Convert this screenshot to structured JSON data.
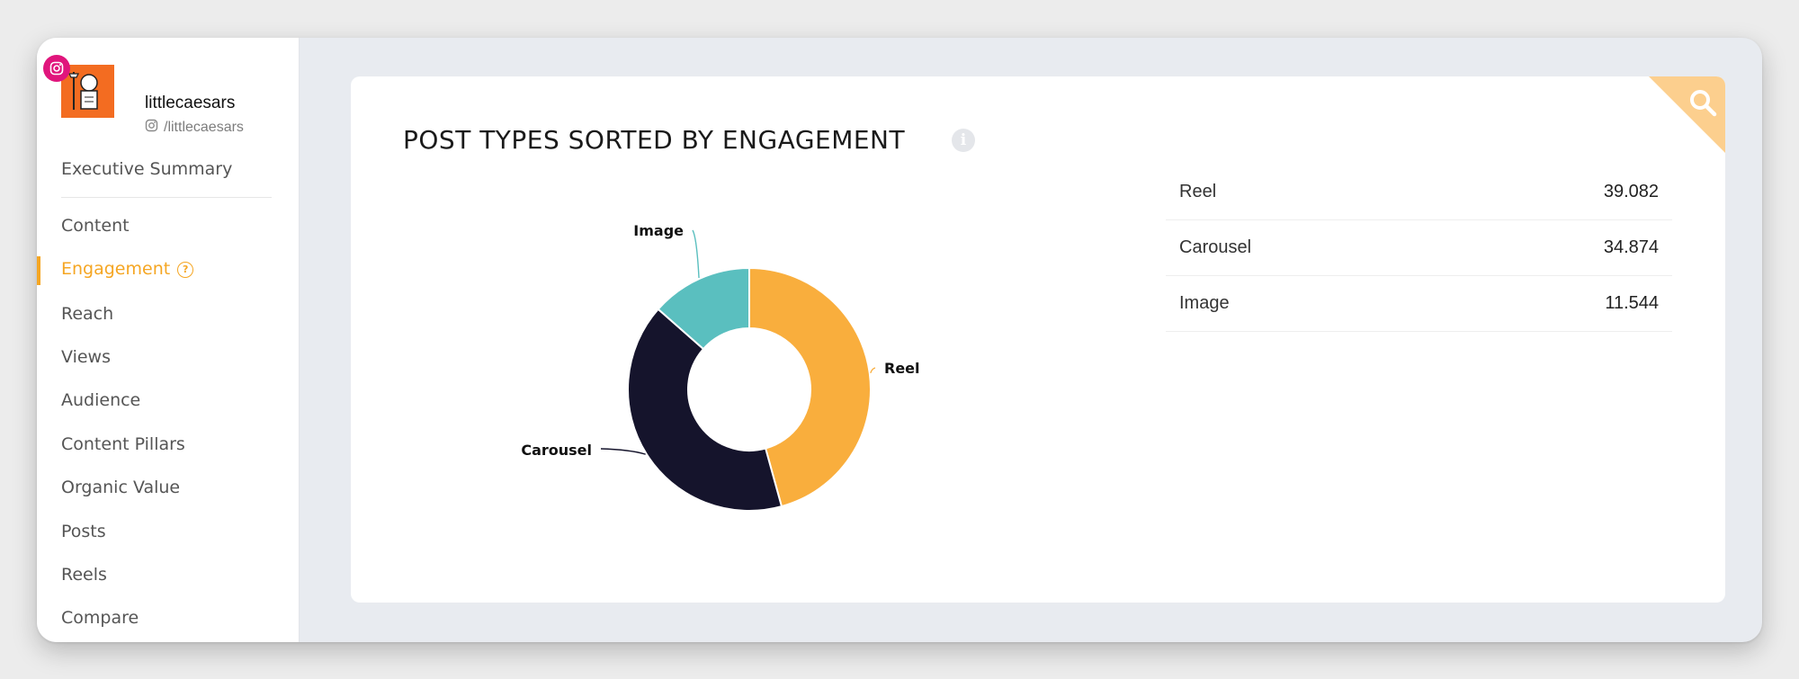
{
  "profile": {
    "name": "littlecaesars",
    "handle": "/littlecaesars"
  },
  "nav": {
    "items": [
      {
        "label": "Executive Summary"
      },
      {
        "label": "Content"
      },
      {
        "label": "Engagement",
        "active": true
      },
      {
        "label": "Reach"
      },
      {
        "label": "Views"
      },
      {
        "label": "Audience"
      },
      {
        "label": "Content Pillars"
      },
      {
        "label": "Organic Value"
      },
      {
        "label": "Posts"
      },
      {
        "label": "Reels"
      },
      {
        "label": "Compare"
      }
    ]
  },
  "card": {
    "title": "POST TYPES SORTED BY ENGAGEMENT"
  },
  "colors": {
    "accent": "#f5a623",
    "reel": "#f9ae3d",
    "carousel": "#15142c",
    "image": "#5abfbf",
    "instagram": "#e0157c"
  },
  "chart_data": {
    "type": "pie",
    "donut": true,
    "categories": [
      "Reel",
      "Carousel",
      "Image"
    ],
    "values": [
      39.082,
      34.874,
      11.544
    ],
    "value_labels": [
      "39.082",
      "34.874",
      "11.544"
    ],
    "colors": [
      "#f9ae3d",
      "#15142c",
      "#5abfbf"
    ],
    "legend": "right"
  }
}
